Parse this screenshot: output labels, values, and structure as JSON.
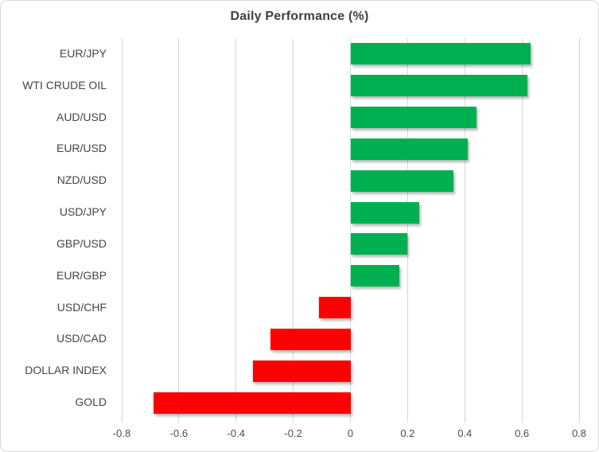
{
  "window": {
    "title": "Daily Performance (%)"
  },
  "chart_data": {
    "type": "bar",
    "orientation": "horizontal",
    "title": "Daily Performance (%)",
    "categories": [
      "EUR/JPY",
      "WTI CRUDE OIL",
      "AUD/USD",
      "EUR/USD",
      "NZD/USD",
      "USD/JPY",
      "GBP/USD",
      "EUR/GBP",
      "USD/CHF",
      "USD/CAD",
      "DOLLAR INDEX",
      "GOLD"
    ],
    "values": [
      0.63,
      0.62,
      0.44,
      0.41,
      0.36,
      0.24,
      0.2,
      0.17,
      -0.11,
      -0.28,
      -0.34,
      -0.69
    ],
    "xlabel": "",
    "ylabel": "",
    "xlim": [
      -0.8,
      0.8
    ],
    "xticks": [
      -0.8,
      -0.6,
      -0.4,
      -0.2,
      0,
      0.2,
      0.4,
      0.6,
      0.8
    ],
    "xtick_labels": [
      "-0.8",
      "-0.6",
      "-0.4",
      "-0.2",
      "0",
      "0.2",
      "0.4",
      "0.6",
      "0.8"
    ],
    "grid": true,
    "legend": "none",
    "positive_color": "#00B050",
    "negative_color": "#FF0000",
    "gridline_color": "#D6D6D6",
    "title_color": "#3F3F3F",
    "label_color": "#454545"
  }
}
